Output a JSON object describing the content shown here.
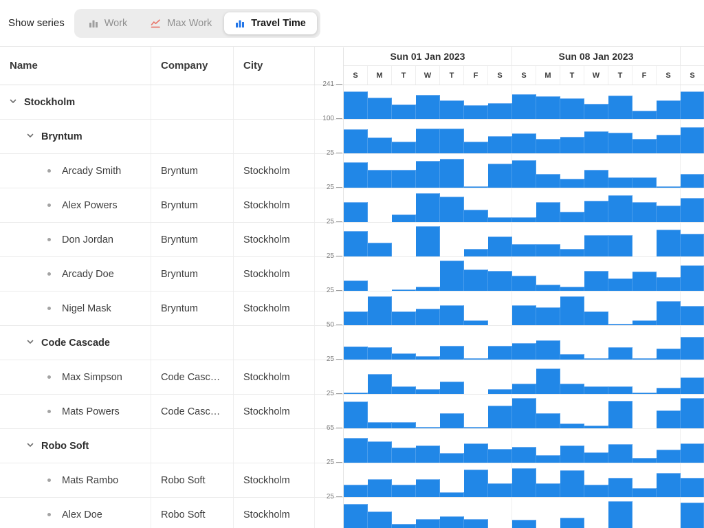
{
  "toolbar": {
    "show_series_label": "Show series",
    "buttons": [
      {
        "label": "Work",
        "icon": "bar-chart-icon",
        "active": false
      },
      {
        "label": "Max Work",
        "icon": "line-chart-icon",
        "active": false
      },
      {
        "label": "Travel Time",
        "icon": "bar-chart-icon",
        "active": true
      }
    ]
  },
  "grid": {
    "columns": [
      "Name",
      "Company",
      "City"
    ]
  },
  "timeline": {
    "weeks": [
      {
        "label": "Sun 01 Jan 2023",
        "days": 7
      },
      {
        "label": "Sun 08 Jan 2023",
        "days": 7
      },
      {
        "label": "",
        "days": 1
      }
    ],
    "day_letters": [
      "S",
      "M",
      "T",
      "W",
      "T",
      "F",
      "S",
      "S",
      "M",
      "T",
      "W",
      "T",
      "F",
      "S",
      "S"
    ]
  },
  "colors": {
    "bar_fill": "#2187e7",
    "bar_top_edge": "#74b1f0",
    "accent_blue": "#2276e8",
    "accent_coral": "#e8786d",
    "inactive_gray": "#9e9e9e"
  },
  "chart_data": {
    "type": "bar",
    "series_shown": "Travel Time",
    "x_day_letters": [
      "S",
      "M",
      "T",
      "W",
      "T",
      "F",
      "S",
      "S",
      "M",
      "T",
      "W",
      "T",
      "F",
      "S",
      "S"
    ],
    "note_layout": "per-row histogram, 15 day columns (last partial), row max printed at left",
    "rows": [
      {
        "name": "Stockholm",
        "kind": "group",
        "level": 0,
        "company": "",
        "city": "",
        "scale": 241,
        "values": [
          208,
          160,
          112,
          185,
          140,
          104,
          122,
          190,
          175,
          158,
          115,
          180,
          65,
          140,
          210
        ]
      },
      {
        "name": "Bryntum",
        "kind": "group",
        "level": 1,
        "company": "",
        "city": "",
        "scale": 100,
        "values": [
          75,
          50,
          37,
          79,
          79,
          37,
          55,
          62,
          45,
          52,
          70,
          65,
          45,
          58,
          82
        ]
      },
      {
        "name": "Arcady Smith",
        "kind": "leaf",
        "level": 2,
        "company": "Bryntum",
        "city": "Stockholm",
        "scale": 25,
        "values": [
          20,
          14,
          14,
          21,
          23,
          1,
          19,
          22,
          11,
          7,
          14,
          8,
          8,
          1,
          11
        ]
      },
      {
        "name": "Alex Powers",
        "kind": "leaf",
        "level": 2,
        "company": "Bryntum",
        "city": "Stockholm",
        "scale": 25,
        "values": [
          16,
          0,
          6,
          23,
          20,
          10,
          4,
          4,
          16,
          8,
          17,
          21,
          16,
          13,
          19
        ]
      },
      {
        "name": "Don Jordan",
        "kind": "leaf",
        "level": 2,
        "company": "Bryntum",
        "city": "Stockholm",
        "scale": 25,
        "values": [
          20,
          11,
          0,
          24,
          0,
          6,
          16,
          10,
          10,
          6,
          17,
          17,
          0,
          21,
          18
        ]
      },
      {
        "name": "Arcady Doe",
        "kind": "leaf",
        "level": 2,
        "company": "Bryntum",
        "city": "Stockholm",
        "scale": 25,
        "values": [
          8,
          0,
          1,
          3,
          24,
          17,
          16,
          12,
          5,
          3,
          16,
          10,
          15,
          11,
          20
        ]
      },
      {
        "name": "Nigel Mask",
        "kind": "leaf",
        "level": 2,
        "company": "Bryntum",
        "city": "Stockholm",
        "scale": 25,
        "values": [
          11,
          23,
          11,
          13,
          16,
          4,
          0,
          16,
          14,
          23,
          11,
          1,
          4,
          19,
          15
        ]
      },
      {
        "name": "Code Cascade",
        "kind": "group",
        "level": 1,
        "company": "",
        "city": "",
        "scale": 50,
        "values": [
          21,
          20,
          10,
          5,
          22,
          2,
          22,
          26,
          30,
          9,
          1,
          20,
          1,
          17,
          36
        ]
      },
      {
        "name": "Max Simpson",
        "kind": "leaf",
        "level": 2,
        "company": "Code Casc…",
        "city": "Stockholm",
        "scale": 25,
        "values": [
          1,
          16,
          6,
          4,
          10,
          0,
          4,
          8,
          20,
          8,
          6,
          6,
          1,
          5,
          13
        ]
      },
      {
        "name": "Mats Powers",
        "kind": "leaf",
        "level": 2,
        "company": "Code Casc…",
        "city": "Stockholm",
        "scale": 25,
        "values": [
          21,
          5,
          5,
          1,
          12,
          1,
          18,
          24,
          12,
          4,
          2,
          22,
          0,
          14,
          24
        ]
      },
      {
        "name": "Robo Soft",
        "kind": "group",
        "level": 1,
        "company": "",
        "city": "",
        "scale": 65,
        "values": [
          51,
          44,
          31,
          35,
          20,
          40,
          28,
          32,
          15,
          35,
          21,
          38,
          10,
          27,
          40
        ]
      },
      {
        "name": "Mats Rambo",
        "kind": "leaf",
        "level": 2,
        "company": "Robo Soft",
        "city": "Stockholm",
        "scale": 25,
        "values": [
          10,
          14,
          10,
          14,
          4,
          22,
          11,
          23,
          11,
          21,
          10,
          15,
          7,
          19,
          15
        ]
      },
      {
        "name": "Alex Doe",
        "kind": "leaf",
        "level": 2,
        "company": "Robo Soft",
        "city": "Stockholm",
        "scale": 25,
        "values": [
          22,
          16,
          6,
          10,
          12,
          10,
          0,
          9,
          0,
          11,
          0,
          24,
          0,
          0,
          23
        ]
      }
    ]
  }
}
